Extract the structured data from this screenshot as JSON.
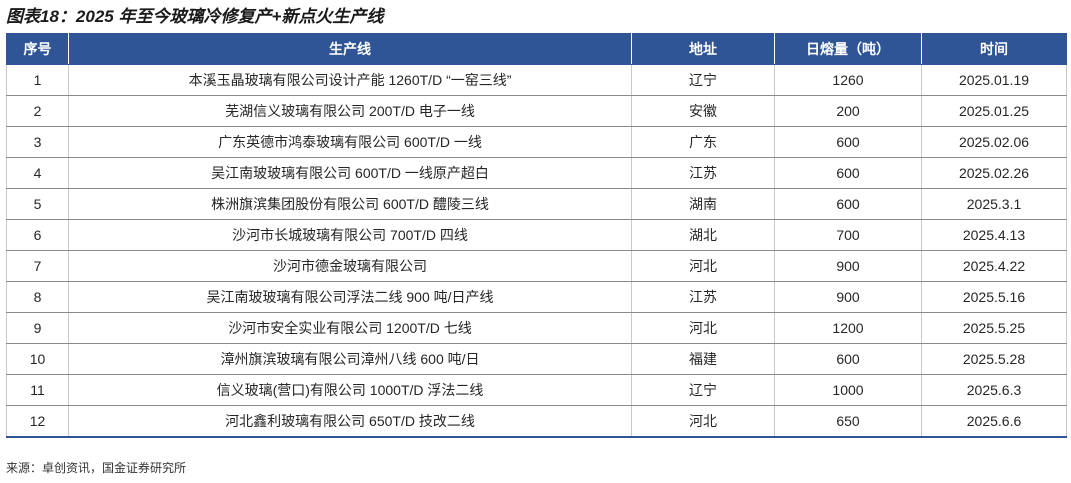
{
  "title": "图表18：2025 年至今玻璃冷修复产+新点火生产线",
  "table": {
    "headers": [
      "序号",
      "生产线",
      "地址",
      "日熔量（吨）",
      "时间"
    ],
    "rows": [
      [
        "1",
        "本溪玉晶玻璃有限公司设计产能 1260T/D “一窑三线”",
        "辽宁",
        "1260",
        "2025.01.19"
      ],
      [
        "2",
        "芜湖信义玻璃有限公司 200T/D 电子一线",
        "安徽",
        "200",
        "2025.01.25"
      ],
      [
        "3",
        "广东英德市鸿泰玻璃有限公司 600T/D 一线",
        "广东",
        "600",
        "2025.02.06"
      ],
      [
        "4",
        "吴江南玻玻璃有限公司 600T/D 一线原产超白",
        "江苏",
        "600",
        "2025.02.26"
      ],
      [
        "5",
        "株洲旗滨集团股份有限公司 600T/D 醴陵三线",
        "湖南",
        "600",
        "2025.3.1"
      ],
      [
        "6",
        "沙河市长城玻璃有限公司 700T/D 四线",
        "湖北",
        "700",
        "2025.4.13"
      ],
      [
        "7",
        "沙河市德金玻璃有限公司",
        "河北",
        "900",
        "2025.4.22"
      ],
      [
        "8",
        "吴江南玻玻璃有限公司浮法二线 900 吨/日产线",
        "江苏",
        "900",
        "2025.5.16"
      ],
      [
        "9",
        "沙河市安全实业有限公司 1200T/D 七线",
        "河北",
        "1200",
        "2025.5.25"
      ],
      [
        "10",
        "漳州旗滨玻璃有限公司漳州八线 600 吨/日",
        "福建",
        "600",
        "2025.5.28"
      ],
      [
        "11",
        "信义玻璃(营口)有限公司 1000T/D 浮法二线",
        "辽宁",
        "1000",
        "2025.6.3"
      ],
      [
        "12",
        "河北鑫利玻璃有限公司 650T/D 技改二线",
        "河北",
        "650",
        "2025.6.6"
      ]
    ]
  },
  "source": "来源：卓创资讯，国金证券研究所",
  "colors": {
    "header_bg": "#2f5597",
    "header_text": "#ffffff"
  }
}
